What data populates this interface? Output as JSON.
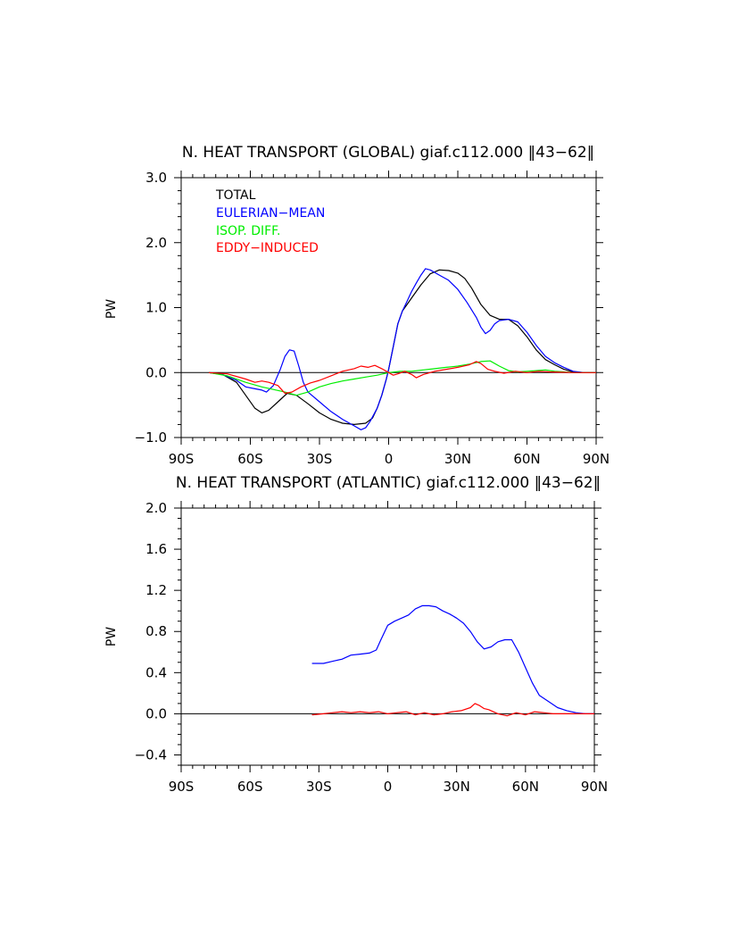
{
  "chart_data": [
    {
      "type": "line",
      "title": "N. HEAT TRANSPORT (GLOBAL) giaf.c112.000 ​‖​43−62​‖",
      "ylabel": "PW",
      "xlabel": "",
      "xlim": [
        -90,
        90
      ],
      "ylim": [
        -1.0,
        3.0
      ],
      "x_ticks": [
        -90,
        -60,
        -30,
        0,
        30,
        60,
        90
      ],
      "x_tick_labels": [
        "90S",
        "60S",
        "30S",
        "0",
        "30N",
        "60N",
        "90N"
      ],
      "y_ticks": [
        -1.0,
        0.0,
        1.0,
        2.0,
        3.0
      ],
      "y_tick_labels": [
        "−1.0",
        "0.0",
        "1.0",
        "2.0",
        "3.0"
      ],
      "zero_line": true,
      "legend": [
        "TOTAL",
        "EULERIAN−MEAN",
        "ISOP. DIFF.",
        "EDDY−INDUCED"
      ],
      "series": [
        {
          "name": "TOTAL",
          "color": "#000000",
          "x": [
            -78,
            -72,
            -66,
            -62,
            -58,
            -55,
            -52,
            -48,
            -44,
            -40,
            -35,
            -30,
            -25,
            -20,
            -15,
            -10,
            -7,
            -5,
            -3,
            -1,
            0,
            2,
            4,
            6,
            8,
            10,
            14,
            18,
            22,
            26,
            30,
            33,
            36,
            40,
            44,
            48,
            52,
            56,
            60,
            64,
            68,
            72,
            76,
            80,
            85,
            90
          ],
          "y": [
            0,
            -0.03,
            -0.15,
            -0.35,
            -0.55,
            -0.62,
            -0.58,
            -0.45,
            -0.32,
            -0.35,
            -0.48,
            -0.62,
            -0.72,
            -0.78,
            -0.8,
            -0.78,
            -0.7,
            -0.55,
            -0.35,
            -0.1,
            0.05,
            0.4,
            0.75,
            0.95,
            1.05,
            1.15,
            1.35,
            1.52,
            1.58,
            1.57,
            1.53,
            1.45,
            1.3,
            1.05,
            0.88,
            0.82,
            0.82,
            0.72,
            0.55,
            0.35,
            0.2,
            0.12,
            0.05,
            0.01,
            0,
            0
          ]
        },
        {
          "name": "EULERIAN−MEAN",
          "color": "#0000ff",
          "x": [
            -78,
            -72,
            -66,
            -62,
            -58,
            -55,
            -53,
            -50,
            -47,
            -45,
            -43,
            -41,
            -39,
            -37,
            -35,
            -30,
            -25,
            -20,
            -15,
            -12,
            -10,
            -8,
            -5,
            -3,
            -1,
            0,
            2,
            4,
            6,
            8,
            10,
            12,
            14,
            16,
            18,
            22,
            26,
            30,
            34,
            38,
            40,
            42,
            44,
            46,
            48,
            52,
            56,
            60,
            64,
            68,
            72,
            76,
            80,
            85,
            90
          ],
          "y": [
            0,
            -0.03,
            -0.12,
            -0.22,
            -0.25,
            -0.27,
            -0.3,
            -0.2,
            0.05,
            0.25,
            0.35,
            0.33,
            0.1,
            -0.15,
            -0.3,
            -0.45,
            -0.6,
            -0.72,
            -0.82,
            -0.88,
            -0.85,
            -0.75,
            -0.55,
            -0.35,
            -0.1,
            0.05,
            0.4,
            0.75,
            0.95,
            1.1,
            1.25,
            1.38,
            1.5,
            1.6,
            1.58,
            1.5,
            1.42,
            1.28,
            1.08,
            0.85,
            0.7,
            0.6,
            0.65,
            0.75,
            0.8,
            0.82,
            0.78,
            0.62,
            0.42,
            0.25,
            0.15,
            0.08,
            0.02,
            0,
            0
          ]
        },
        {
          "name": "ISOP. DIFF.",
          "color": "#00ee00",
          "x": [
            -78,
            -70,
            -62,
            -55,
            -50,
            -45,
            -40,
            -35,
            -30,
            -25,
            -20,
            -15,
            -10,
            -5,
            0,
            5,
            10,
            15,
            20,
            25,
            30,
            35,
            40,
            44,
            48,
            52,
            56,
            60,
            64,
            68,
            72,
            76,
            80,
            90
          ],
          "y": [
            0,
            -0.05,
            -0.15,
            -0.22,
            -0.26,
            -0.3,
            -0.35,
            -0.3,
            -0.22,
            -0.17,
            -0.13,
            -0.1,
            -0.07,
            -0.04,
            0,
            0.02,
            0.02,
            0.04,
            0.06,
            0.08,
            0.1,
            0.13,
            0.17,
            0.18,
            0.1,
            0.03,
            0.01,
            0.02,
            0.03,
            0.04,
            0.02,
            0.01,
            0,
            0
          ]
        },
        {
          "name": "EDDY−INDUCED",
          "color": "#ff0000",
          "x": [
            -78,
            -70,
            -62,
            -58,
            -55,
            -52,
            -48,
            -45,
            -42,
            -38,
            -34,
            -30,
            -25,
            -20,
            -15,
            -12,
            -9,
            -6,
            -3,
            0,
            2,
            4,
            7,
            10,
            12,
            15,
            20,
            25,
            30,
            35,
            38,
            40,
            43,
            46,
            50,
            55,
            60,
            65,
            70,
            80,
            90
          ],
          "y": [
            0,
            -0.02,
            -0.1,
            -0.15,
            -0.13,
            -0.15,
            -0.2,
            -0.32,
            -0.3,
            -0.22,
            -0.16,
            -0.12,
            -0.05,
            0.02,
            0.06,
            0.1,
            0.08,
            0.11,
            0.06,
            0,
            -0.04,
            -0.02,
            0.02,
            -0.03,
            -0.08,
            -0.03,
            0.02,
            0.05,
            0.08,
            0.12,
            0.17,
            0.14,
            0.05,
            0.02,
            -0.01,
            0.02,
            0,
            0.02,
            0.01,
            0,
            0
          ]
        }
      ]
    },
    {
      "type": "line",
      "title": "N. HEAT TRANSPORT (ATLANTIC) giaf.c112.000 ​‖​43−62​‖",
      "ylabel": "PW",
      "xlabel": "",
      "xlim": [
        -90,
        90
      ],
      "ylim": [
        -0.5,
        2.0
      ],
      "x_ticks": [
        -90,
        -60,
        -30,
        0,
        30,
        60,
        90
      ],
      "x_tick_labels": [
        "90S",
        "60S",
        "30S",
        "0",
        "30N",
        "60N",
        "90N"
      ],
      "y_ticks": [
        -0.4,
        0.0,
        0.4,
        0.8,
        1.2,
        1.6,
        2.0
      ],
      "y_tick_labels": [
        "−0.4",
        "0.0",
        "0.4",
        "0.8",
        "1.2",
        "1.6",
        "2.0"
      ],
      "zero_line": true,
      "series": [
        {
          "name": "EULERIAN−MEAN",
          "color": "#0000ff",
          "x": [
            -33,
            -28,
            -24,
            -20,
            -16,
            -12,
            -8,
            -5,
            -3,
            0,
            3,
            6,
            9,
            12,
            15,
            18,
            21,
            24,
            27,
            30,
            33,
            36,
            39,
            42,
            45,
            48,
            51,
            54,
            57,
            60,
            63,
            66,
            70,
            74,
            78,
            82,
            86,
            90
          ],
          "y": [
            0.49,
            0.49,
            0.51,
            0.53,
            0.57,
            0.58,
            0.59,
            0.62,
            0.72,
            0.86,
            0.9,
            0.93,
            0.96,
            1.02,
            1.05,
            1.05,
            1.04,
            1.0,
            0.97,
            0.93,
            0.88,
            0.8,
            0.7,
            0.63,
            0.65,
            0.7,
            0.72,
            0.72,
            0.6,
            0.45,
            0.3,
            0.18,
            0.12,
            0.06,
            0.03,
            0.01,
            0,
            0
          ]
        },
        {
          "name": "EDDY−INDUCED",
          "color": "#ff0000",
          "x": [
            -33,
            -28,
            -24,
            -20,
            -16,
            -12,
            -8,
            -4,
            0,
            4,
            8,
            12,
            16,
            20,
            24,
            28,
            32,
            36,
            38,
            40,
            42,
            44,
            48,
            52,
            56,
            60,
            64,
            68,
            72,
            80,
            90
          ],
          "y": [
            -0.01,
            0,
            0.01,
            0.02,
            0.01,
            0.02,
            0.01,
            0.02,
            0,
            0.01,
            0.02,
            -0.01,
            0.01,
            -0.01,
            0,
            0.02,
            0.03,
            0.06,
            0.1,
            0.08,
            0.05,
            0.04,
            0,
            -0.02,
            0.01,
            -0.01,
            0.02,
            0.01,
            0,
            0,
            0
          ]
        }
      ]
    }
  ]
}
